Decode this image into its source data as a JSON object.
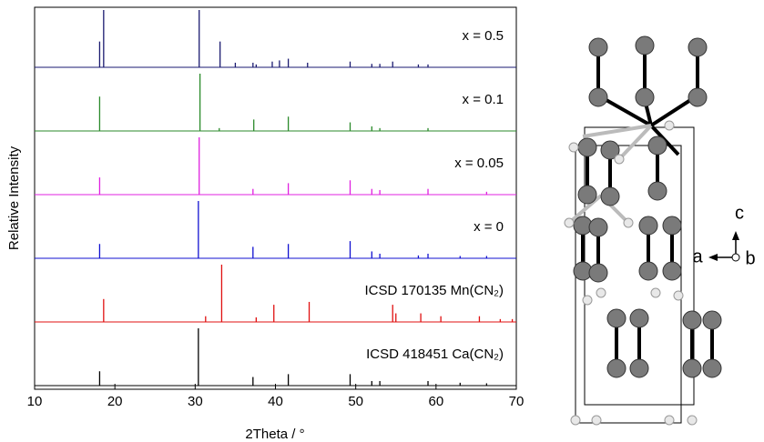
{
  "chart_data": {
    "type": "stem",
    "x_label": "2Theta / °",
    "y_label": "Relative Intensity",
    "xlim": [
      10,
      70
    ],
    "xticks": [
      10,
      20,
      30,
      40,
      50,
      60,
      70
    ],
    "ylim": [
      0,
      100
    ],
    "series": [
      {
        "name": "x = 0.5",
        "color": "#1a1a70",
        "x": [
          18.1,
          18.6,
          30.5,
          33.1,
          35.0,
          37.2,
          37.6,
          39.6,
          40.5,
          41.6,
          44.0,
          49.3,
          52.0,
          53.0,
          54.6,
          57.8,
          59.0
        ],
        "values": [
          45,
          100,
          100,
          45,
          8,
          8,
          5,
          10,
          12,
          15,
          8,
          10,
          6,
          6,
          10,
          5,
          5
        ]
      },
      {
        "name": "x = 0.1",
        "color": "#2a8a2a",
        "x": [
          18.1,
          30.6,
          33.0,
          37.3,
          41.6,
          49.3,
          52.0,
          53.0,
          59.0
        ],
        "values": [
          60,
          100,
          5,
          20,
          25,
          15,
          8,
          5,
          5
        ]
      },
      {
        "name": "x = 0.05",
        "color": "#e020e0",
        "x": [
          18.1,
          30.5,
          37.2,
          41.6,
          49.3,
          52.0,
          53.0,
          59.0,
          66.3
        ],
        "values": [
          30,
          100,
          10,
          20,
          25,
          10,
          8,
          10,
          5
        ]
      },
      {
        "name": "x = 0",
        "color": "#1010d0",
        "x": [
          18.1,
          30.4,
          37.2,
          41.6,
          49.3,
          52.0,
          53.0,
          57.8,
          59.0,
          63.0,
          66.3
        ],
        "values": [
          25,
          100,
          20,
          25,
          30,
          12,
          8,
          5,
          8,
          4,
          4
        ]
      },
      {
        "name": "ICSD 170135 Mn(CN₂)",
        "color": "#e01010",
        "x": [
          18.6,
          31.3,
          33.3,
          37.6,
          39.8,
          44.2,
          54.6,
          55.0,
          58.1,
          60.6,
          65.4,
          68.0,
          69.5
        ],
        "values": [
          40,
          10,
          100,
          8,
          30,
          35,
          30,
          15,
          15,
          10,
          10,
          5,
          5
        ]
      },
      {
        "name": "ICSD 418451 Ca(CN₂)",
        "color": "#000000",
        "x": [
          18.1,
          30.4,
          37.2,
          41.6,
          49.3,
          52.0,
          53.0,
          59.0,
          63.0,
          66.3
        ],
        "values": [
          25,
          100,
          15,
          20,
          20,
          8,
          8,
          8,
          5,
          4
        ]
      }
    ]
  },
  "diagram": {
    "axis_labels": [
      "a",
      "b",
      "c"
    ]
  }
}
